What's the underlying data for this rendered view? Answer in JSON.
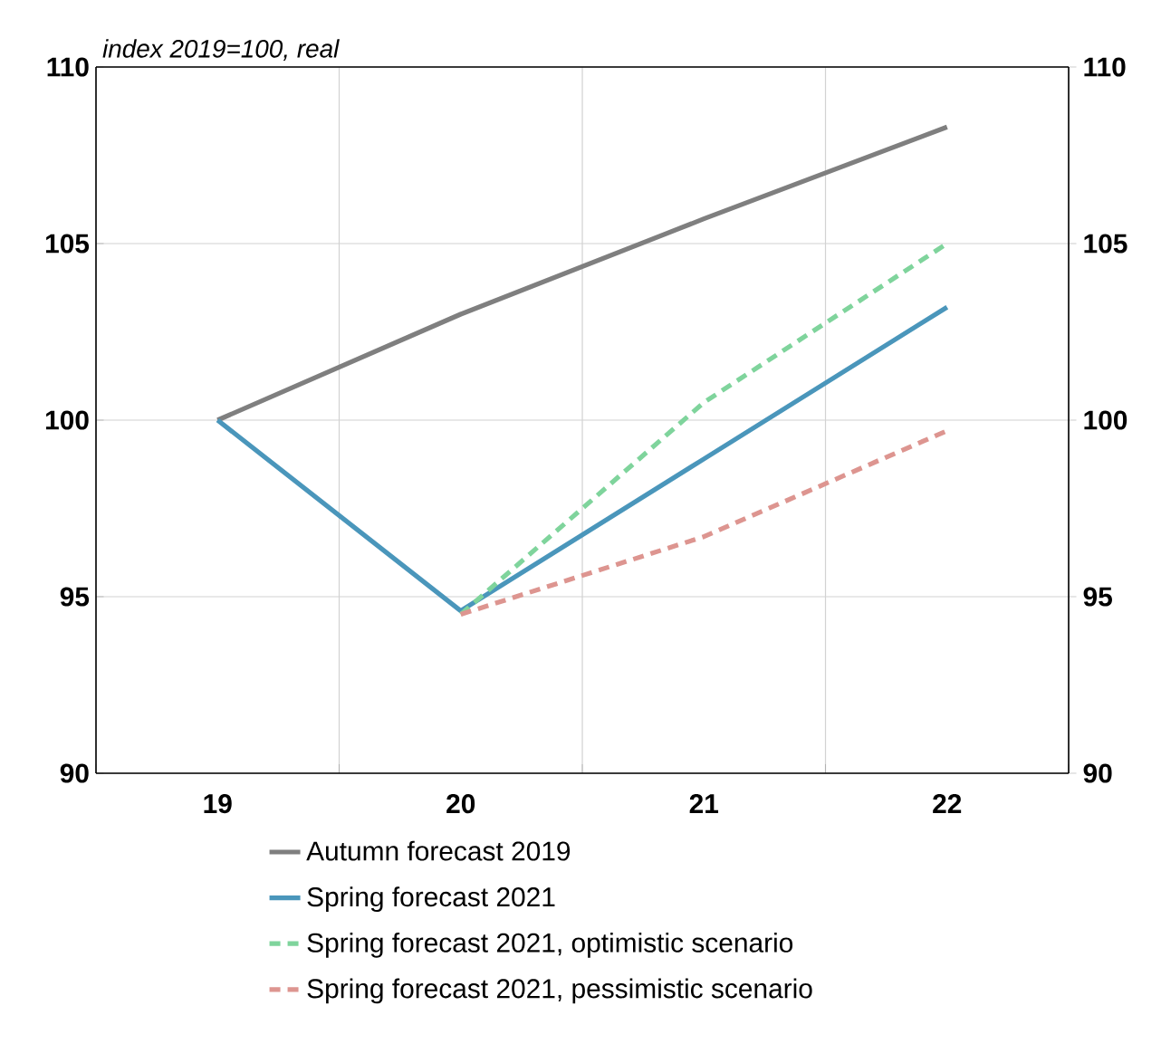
{
  "chart_data": {
    "type": "line",
    "ylabel": "index 2019=100, real",
    "categories": [
      "19",
      "20",
      "21",
      "22"
    ],
    "series": [
      {
        "name": "Autumn forecast 2019",
        "color": "#7f7f7f",
        "line_style": "solid",
        "values": [
          100,
          103.0,
          105.7,
          108.3
        ]
      },
      {
        "name": "Spring forecast 2021",
        "color": "#4a96bb",
        "line_style": "solid",
        "values": [
          100,
          94.6,
          98.9,
          103.2
        ]
      },
      {
        "name": "Spring forecast 2021, optimistic scenario",
        "color": "#7fd49c",
        "line_style": "dashed",
        "values": [
          null,
          94.5,
          100.5,
          105.0
        ]
      },
      {
        "name": "Spring forecast 2021, pessimistic scenario",
        "color": "#dd9590",
        "line_style": "dashed",
        "values": [
          null,
          94.5,
          96.7,
          99.7
        ]
      }
    ],
    "ylim": [
      90,
      110
    ],
    "yticks": [
      90,
      95,
      100,
      105,
      110
    ],
    "y2lim": [
      90,
      110
    ],
    "y2ticks": [
      90,
      95,
      100,
      105,
      110
    ],
    "grid": true,
    "legend": "bottom",
    "marker": "none"
  }
}
